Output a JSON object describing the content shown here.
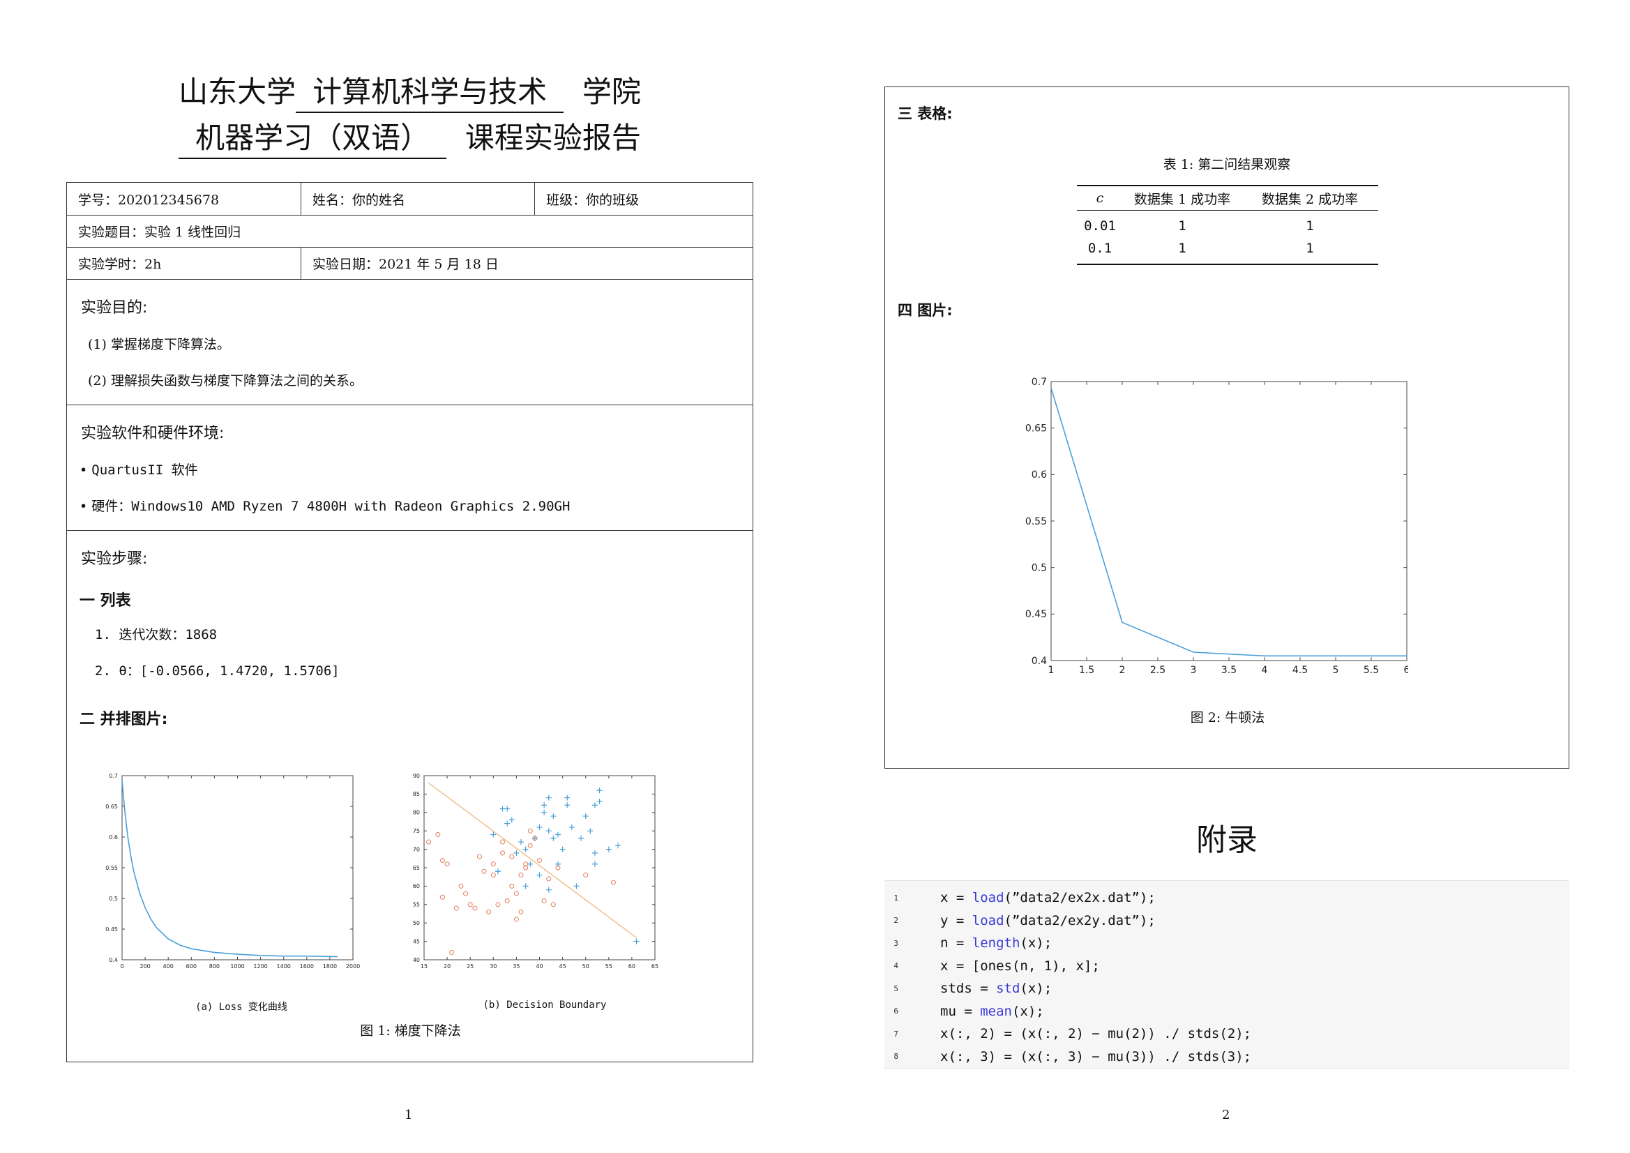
{
  "page1": {
    "title": {
      "line1_prefix": "山东大学",
      "line1_school": "计算机科学与技术",
      "line1_suffix": "学院",
      "line2_course": "机器学习（双语）",
      "line2_suffix": "课程实验报告"
    },
    "info": {
      "student_id": "学号：202012345678",
      "name": "姓名：你的姓名",
      "class": "班级：你的班级",
      "topic": "实验题目：实验 1 线性回归",
      "hours": "实验学时：2h",
      "date": "实验日期：2021 年 5 月 18 日"
    },
    "purpose": {
      "title": "实验目的:",
      "items": [
        "(1) 掌握梯度下降算法。",
        "(2) 理解损失函数与梯度下降算法之间的关系。"
      ]
    },
    "env": {
      "title": "实验软件和硬件环境:",
      "items": [
        "QuartusII 软件",
        "硬件：Windows10 AMD Ryzen 7 4800H with Radeon Graphics 2.90GH"
      ]
    },
    "steps": {
      "title": "实验步骤:",
      "sec1": "一  列表",
      "list": [
        "1. 迭代次数：1868",
        "2. θ：[-0.0566, 1.4720, 1.5706]"
      ],
      "sec2": "二  并排图片:"
    },
    "figure1": {
      "sub_a": "(a) Loss 变化曲线",
      "sub_b": "(b) Decision Boundary",
      "caption": "图 1: 梯度下降法"
    },
    "page_number": "1"
  },
  "page2": {
    "sec3": "三  表格:",
    "table": {
      "caption": "表 1: 第二问结果观察",
      "headers": [
        "c",
        "数据集 1 成功率",
        "数据集 2 成功率"
      ],
      "rows": [
        [
          "0.01",
          "1",
          "1"
        ],
        [
          "0.1",
          "1",
          "1"
        ]
      ]
    },
    "sec4": "四  图片:",
    "figure2": {
      "caption": "图 2: 牛顿法"
    },
    "appendix_title": "附录",
    "code": [
      {
        "n": "1",
        "pre": "x = ",
        "kw": "load",
        "post": "(”data2/ex2x.dat”);"
      },
      {
        "n": "2",
        "pre": "y = ",
        "kw": "load",
        "post": "(”data2/ex2y.dat”);"
      },
      {
        "n": "3",
        "pre": "n = ",
        "kw": "length",
        "post": "(x);"
      },
      {
        "n": "4",
        "pre": "x = [ones(n, 1), x];",
        "kw": "",
        "post": ""
      },
      {
        "n": "5",
        "pre": "stds = ",
        "kw": "std",
        "post": "(x);"
      },
      {
        "n": "6",
        "pre": "mu = ",
        "kw": "mean",
        "post": "(x);"
      },
      {
        "n": "7",
        "pre": "x(:, 2) = (x(:, 2) − mu(2)) ./ stds(2);",
        "kw": "",
        "post": ""
      },
      {
        "n": "8",
        "pre": "x(:, 3) = (x(:, 3) − mu(3)) ./ stds(3);",
        "kw": "",
        "post": ""
      }
    ],
    "page_number": "2"
  },
  "chart_data": [
    {
      "type": "line",
      "title": "",
      "xlabel": "",
      "ylabel": "",
      "xlim": [
        0,
        2000
      ],
      "ylim": [
        0.4,
        0.7
      ],
      "xticks": [
        0,
        200,
        400,
        600,
        800,
        1000,
        1200,
        1400,
        1600,
        1800,
        2000
      ],
      "yticks": [
        0.4,
        0.45,
        0.5,
        0.55,
        0.6,
        0.65,
        0.7
      ],
      "series": [
        {
          "color": "#4a9fd8",
          "x": [
            0,
            25,
            50,
            75,
            100,
            150,
            200,
            250,
            300,
            400,
            500,
            600,
            800,
            1000,
            1200,
            1400,
            1600,
            1868
          ],
          "y": [
            0.693,
            0.64,
            0.6,
            0.57,
            0.545,
            0.51,
            0.485,
            0.466,
            0.452,
            0.434,
            0.424,
            0.418,
            0.412,
            0.409,
            0.407,
            0.406,
            0.406,
            0.405
          ]
        }
      ]
    },
    {
      "type": "scatter",
      "title": "",
      "xlim": [
        15,
        65
      ],
      "ylim": [
        40,
        90
      ],
      "xticks": [
        15,
        20,
        25,
        30,
        35,
        40,
        45,
        50,
        55,
        60,
        65
      ],
      "yticks": [
        40,
        45,
        50,
        55,
        60,
        65,
        70,
        75,
        80,
        85,
        90
      ],
      "series": [
        {
          "marker": "+",
          "color": "#4a9fd8",
          "x": [
            30,
            32,
            33,
            34,
            33,
            36,
            37,
            38,
            39,
            40,
            41,
            41,
            42,
            42,
            43,
            43,
            44,
            45,
            46,
            46,
            47,
            48,
            50,
            51,
            52,
            53,
            53,
            55,
            57,
            37,
            40,
            42,
            35,
            31,
            52,
            52,
            61,
            44,
            49
          ],
          "y": [
            74,
            81,
            81,
            78,
            77,
            72,
            70,
            66,
            73,
            76,
            80,
            82,
            84,
            75,
            73,
            79,
            66,
            70,
            82,
            84,
            76,
            60,
            79,
            75,
            82,
            86,
            83,
            70,
            71,
            60,
            63,
            59,
            69,
            64,
            69,
            66,
            45,
            74,
            73
          ]
        },
        {
          "marker": "o",
          "color": "#e27b58",
          "x": [
            16,
            18,
            19,
            19,
            20,
            21,
            22,
            23,
            24,
            25,
            26,
            27,
            28,
            29,
            30,
            30,
            31,
            32,
            32,
            33,
            34,
            34,
            35,
            35,
            36,
            36,
            37,
            37,
            38,
            38,
            39,
            40,
            41,
            42,
            43,
            44,
            50,
            56
          ],
          "y": [
            72,
            74,
            67,
            57,
            66,
            42,
            54,
            60,
            58,
            55,
            54,
            68,
            64,
            53,
            63,
            66,
            55,
            72,
            69,
            56,
            68,
            60,
            51,
            58,
            63,
            53,
            66,
            65,
            75,
            71,
            73,
            67,
            56,
            62,
            55,
            65,
            63,
            61
          ]
        }
      ],
      "boundary": {
        "color": "#f0c08a",
        "x": [
          16,
          61
        ],
        "y": [
          88,
          46
        ]
      }
    },
    {
      "type": "line",
      "title": "",
      "xlim": [
        1,
        6
      ],
      "ylim": [
        0.4,
        0.7
      ],
      "xticks": [
        1,
        1.5,
        2,
        2.5,
        3,
        3.5,
        4,
        4.5,
        5,
        5.5,
        6
      ],
      "yticks": [
        0.4,
        0.45,
        0.5,
        0.55,
        0.6,
        0.65,
        0.7
      ],
      "series": [
        {
          "color": "#4a9fd8",
          "x": [
            1,
            2,
            3,
            4,
            5,
            6
          ],
          "y": [
            0.693,
            0.441,
            0.409,
            0.405,
            0.405,
            0.405
          ]
        }
      ]
    }
  ]
}
